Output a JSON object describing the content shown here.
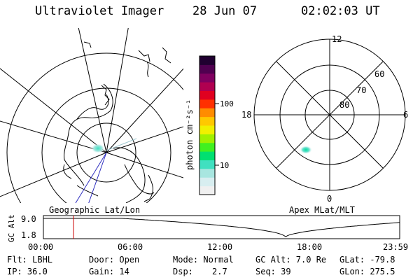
{
  "header": {
    "instrument": "Ultraviolet Imager",
    "date": "28 Jun 07",
    "time": "02:02:03 UT"
  },
  "map_labels": {
    "geographic": "Geographic Lat/Lon",
    "apex": "Apex MLat/MLT"
  },
  "colorbar": {
    "unit_label": "photon cm⁻²s⁻¹",
    "ticks": [
      {
        "label": "100",
        "value": 100
      },
      {
        "label": "10",
        "value": 10
      }
    ],
    "colors": [
      "#f0f0f0",
      "#d8eef0",
      "#a8e6e0",
      "#40e0c0",
      "#00e070",
      "#40f020",
      "#a0f000",
      "#f0f000",
      "#ffc800",
      "#ff8c00",
      "#ff3000",
      "#e00020",
      "#b00050",
      "#800060",
      "#500050",
      "#200030"
    ]
  },
  "apex_plot": {
    "mlt_labels": [
      {
        "label": "12",
        "pos": "top"
      },
      {
        "label": "6",
        "pos": "right"
      },
      {
        "label": "0",
        "pos": "bottom"
      },
      {
        "label": "18",
        "pos": "left"
      }
    ],
    "lat_labels": [
      "60",
      "70",
      "80"
    ]
  },
  "altitude_plot": {
    "ylabel": "GC Alt",
    "yticks": [
      "9.0",
      "1.8"
    ],
    "xticks": [
      "00:00",
      "06:00",
      "12:00",
      "18:00",
      "23:59"
    ],
    "current_time_hours": 2.03,
    "line_color": "#cc0000"
  },
  "footer": {
    "flt": "Flt: LBHL",
    "door": "Door: Open",
    "mode": "Mode: Normal",
    "gcalt": "GC Alt: 7.0 Re",
    "glat": "GLat: -79.8",
    "ip": "IP: 36.0",
    "gain": "Gain: 14",
    "dsp_label": "Dsp:",
    "dsp_value": "2.7",
    "seq": "Seq: 39",
    "glon": "GLon: 275.5"
  }
}
